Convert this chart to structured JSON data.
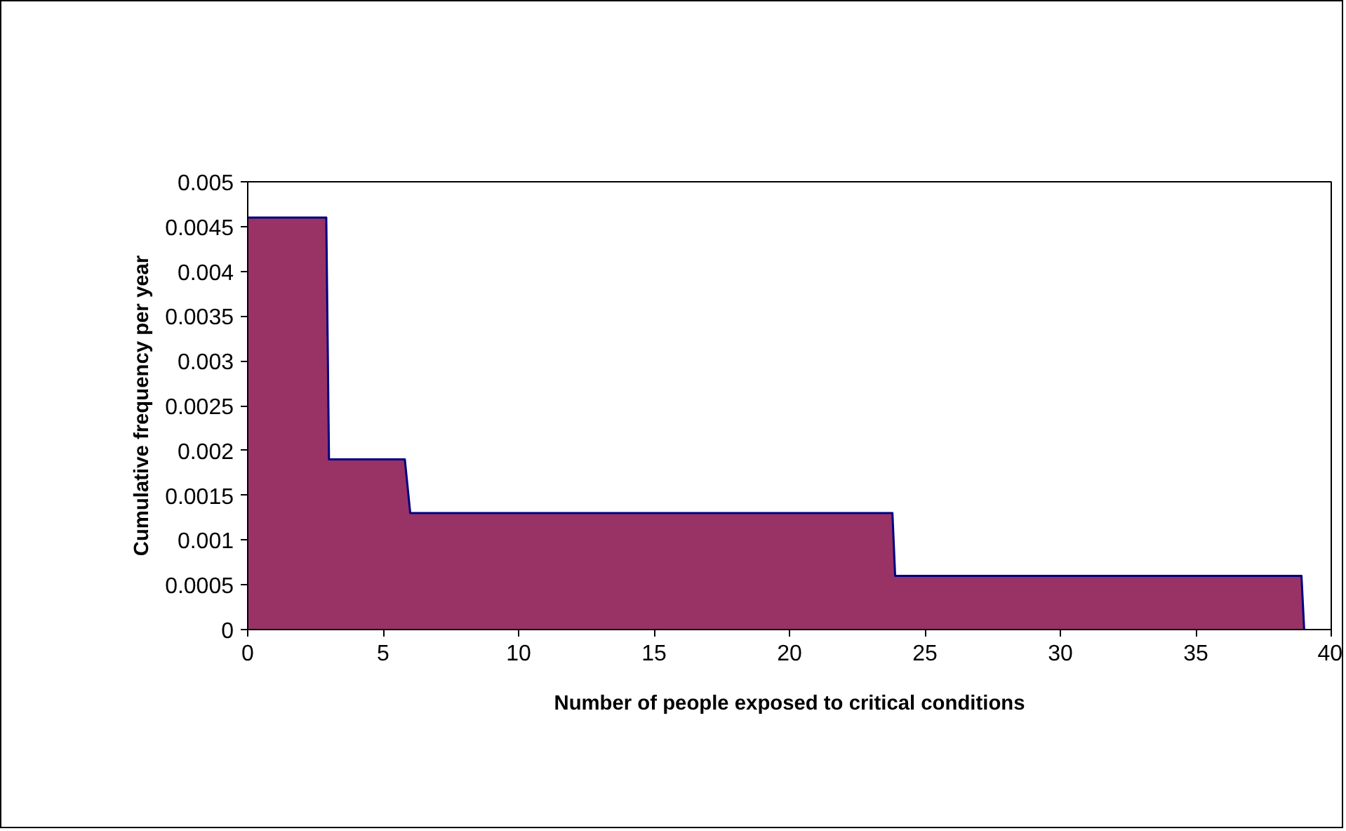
{
  "chart_data": {
    "type": "area",
    "xlabel": "Number of people exposed to critical conditions",
    "ylabel": "Cumulative frequency per year",
    "series": [
      {
        "color": "#993366",
        "x": [
          0,
          2.9,
          3,
          5.8,
          6,
          23.8,
          23.9,
          38.9,
          39
        ],
        "values": [
          0.0046,
          0.0046,
          0.0019,
          0.0019,
          0.0013,
          0.0013,
          0.0006,
          0.0006,
          0
        ]
      }
    ],
    "xlim": [
      0,
      40
    ],
    "xticks": [
      0,
      5,
      10,
      15,
      20,
      25,
      30,
      35,
      40
    ],
    "ylim": [
      0,
      0.005
    ],
    "yticks": [
      0,
      0.0005,
      0.001,
      0.0015,
      0.002,
      0.0025,
      0.003,
      0.0035,
      0.004,
      0.0045,
      0.005
    ],
    "grid": false
  }
}
